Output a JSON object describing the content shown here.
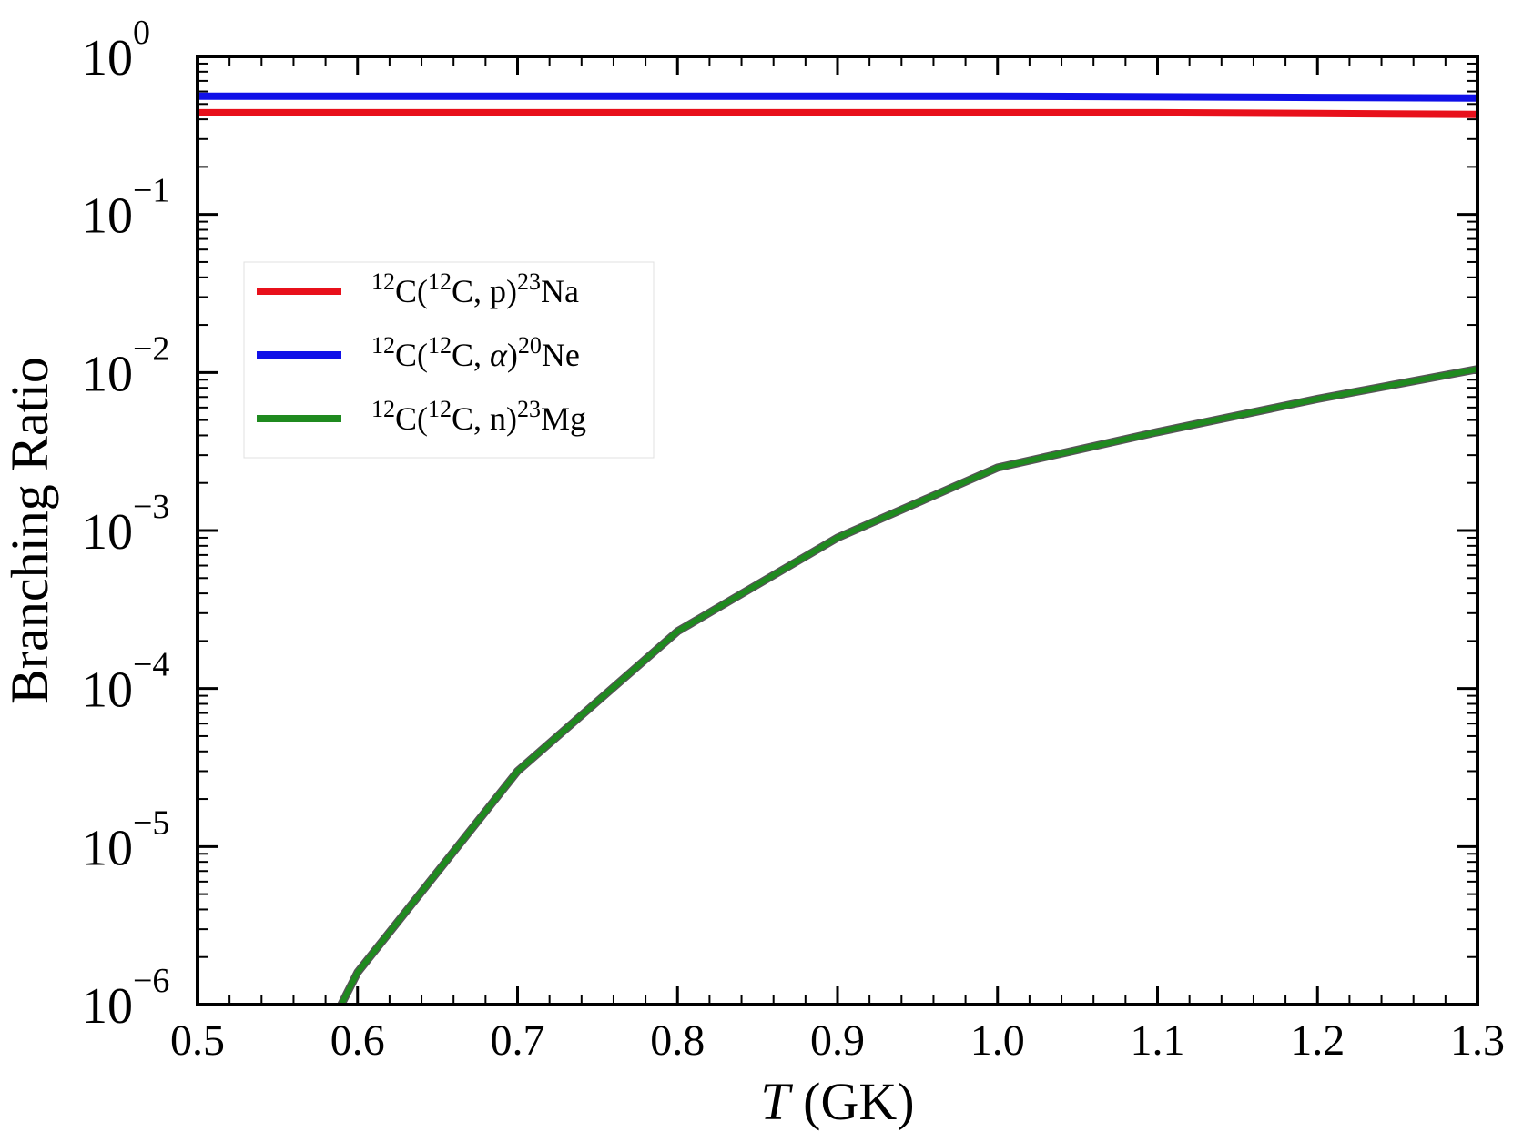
{
  "chart_data": {
    "type": "line",
    "xlabel": {
      "italic": "T",
      "rest": " (GK)"
    },
    "ylabel": "Branching Ratio",
    "xlim": [
      0.5,
      1.3
    ],
    "ylim": [
      1e-06,
      1
    ],
    "yscale": "log",
    "grid": false,
    "legend_position": "center-left",
    "x_ticks": [
      "0.5",
      "0.6",
      "0.7",
      "0.8",
      "0.9",
      "1.0",
      "1.1",
      "1.2",
      "1.3"
    ],
    "y_ticks": [
      {
        "base": "10",
        "exp": "0"
      },
      {
        "base": "10",
        "exp": "−1"
      },
      {
        "base": "10",
        "exp": "−2"
      },
      {
        "base": "10",
        "exp": "−3"
      },
      {
        "base": "10",
        "exp": "−4"
      },
      {
        "base": "10",
        "exp": "−5"
      },
      {
        "base": "10",
        "exp": "−6"
      }
    ],
    "series": [
      {
        "name": "12C(12C, p)23Na",
        "label_parts": [
          {
            "t": "12",
            "sup": true
          },
          {
            "t": "C("
          },
          {
            "t": "12",
            "sup": true
          },
          {
            "t": "C, p)"
          },
          {
            "t": "23",
            "sup": true
          },
          {
            "t": "Na"
          }
        ],
        "color": "#e8101b",
        "x": [
          0.5,
          0.6,
          0.7,
          0.8,
          0.9,
          1.0,
          1.1,
          1.2,
          1.3
        ],
        "y": [
          0.44,
          0.44,
          0.44,
          0.44,
          0.44,
          0.44,
          0.44,
          0.435,
          0.43
        ]
      },
      {
        "name": "12C(12C, α)20Ne",
        "label_parts": [
          {
            "t": "12",
            "sup": true
          },
          {
            "t": "C("
          },
          {
            "t": "12",
            "sup": true
          },
          {
            "t": "C, "
          },
          {
            "t": "α",
            "italic": true
          },
          {
            "t": ")"
          },
          {
            "t": "20",
            "sup": true
          },
          {
            "t": "Ne"
          }
        ],
        "color": "#1010e8",
        "x": [
          0.5,
          0.6,
          0.7,
          0.8,
          0.9,
          1.0,
          1.1,
          1.2,
          1.3
        ],
        "y": [
          0.56,
          0.56,
          0.56,
          0.56,
          0.56,
          0.56,
          0.555,
          0.55,
          0.545
        ]
      },
      {
        "name": "12C(12C, n)23Mg",
        "label_parts": [
          {
            "t": "12",
            "sup": true
          },
          {
            "t": "C("
          },
          {
            "t": "12",
            "sup": true
          },
          {
            "t": "C, n)"
          },
          {
            "t": "23",
            "sup": true
          },
          {
            "t": "Mg"
          }
        ],
        "color": "#1f8a1f",
        "x": [
          0.585,
          0.6,
          0.7,
          0.8,
          0.9,
          1.0,
          1.1,
          1.2,
          1.3
        ],
        "y": [
          8e-07,
          1.6e-06,
          3e-05,
          0.00023,
          0.0009,
          0.0025,
          0.0042,
          0.0068,
          0.0105
        ]
      }
    ]
  }
}
